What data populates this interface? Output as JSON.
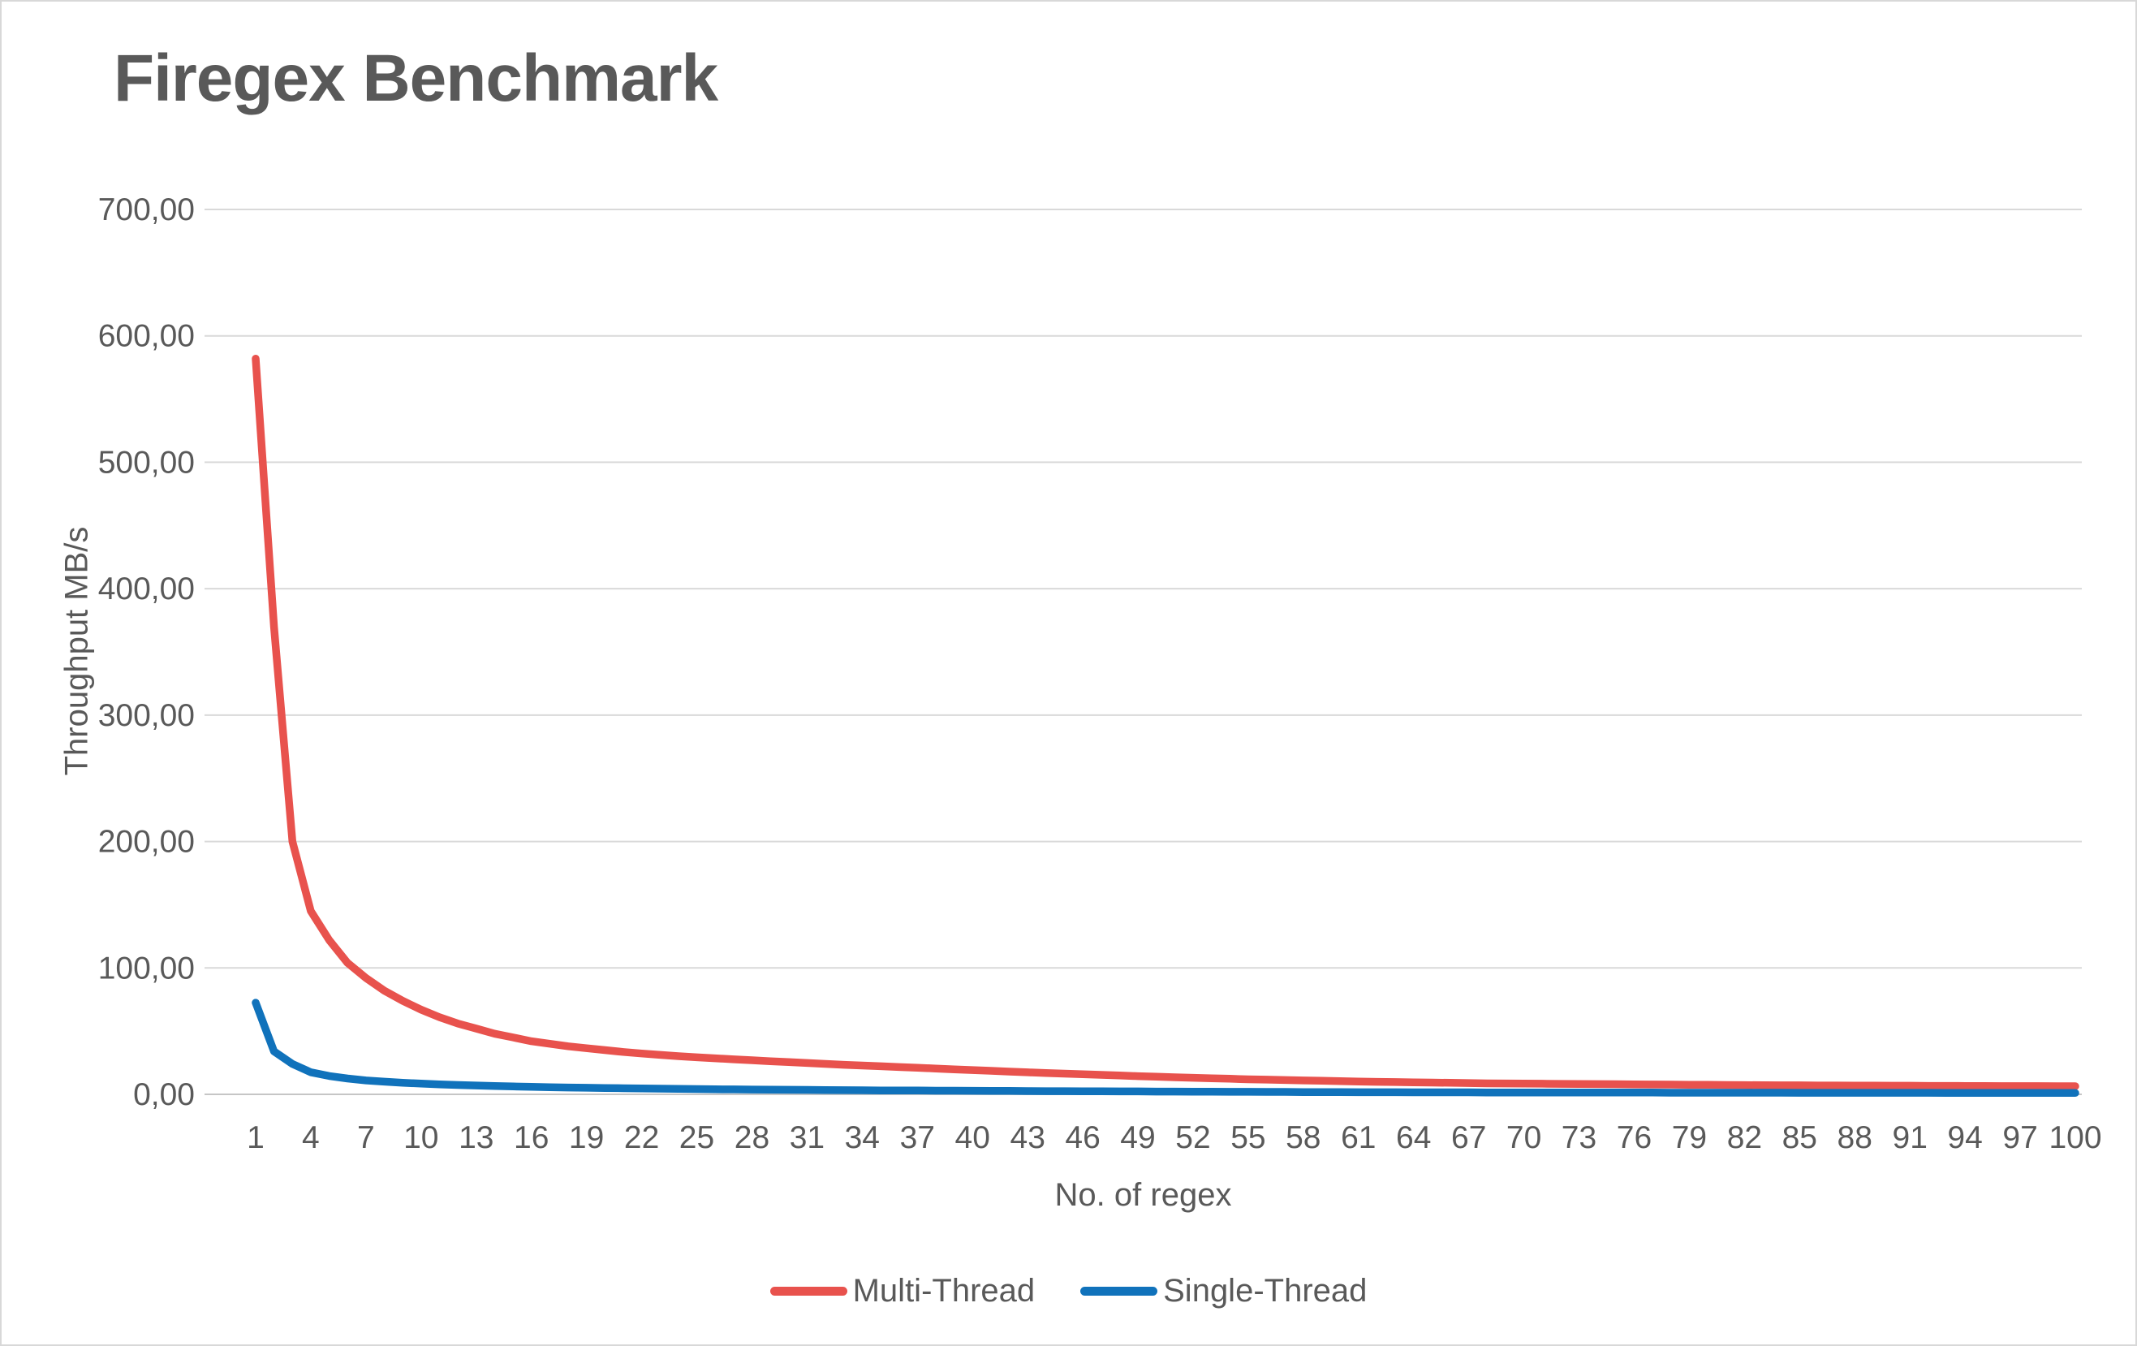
{
  "chart_data": {
    "type": "line",
    "title": "Firegex Benchmark",
    "xlabel": "No. of regex",
    "ylabel": "Throughput MB/s",
    "ylim": [
      0,
      700
    ],
    "x_range": [
      1,
      100
    ],
    "grid": "horizontal",
    "legend_position": "bottom-center",
    "decimal_separator": ",",
    "x_tick_values": [
      1,
      4,
      7,
      10,
      13,
      16,
      19,
      22,
      25,
      28,
      31,
      34,
      37,
      40,
      43,
      46,
      49,
      52,
      55,
      58,
      61,
      64,
      67,
      70,
      73,
      76,
      79,
      82,
      85,
      88,
      91,
      94,
      97,
      100
    ],
    "y_ticks": [
      {
        "value": 0,
        "label": "0,00"
      },
      {
        "value": 100,
        "label": "100,00"
      },
      {
        "value": 200,
        "label": "200,00"
      },
      {
        "value": 300,
        "label": "300,00"
      },
      {
        "value": 400,
        "label": "400,00"
      },
      {
        "value": 500,
        "label": "500,00"
      },
      {
        "value": 600,
        "label": "600,00"
      },
      {
        "value": 700,
        "label": "700,00"
      }
    ],
    "series": [
      {
        "name": "Multi-Thread",
        "color": "#e8524d",
        "values": [
          582,
          370,
          200,
          145,
          122,
          104,
          92,
          82,
          74,
          67,
          61,
          56,
          52,
          48,
          45,
          42,
          40,
          38,
          36.5,
          35,
          33.5,
          32.3,
          31.2,
          30.2,
          29.3,
          28.5,
          27.7,
          27,
          26.2,
          25.5,
          24.8,
          24.1,
          23.4,
          22.8,
          22.2,
          21.6,
          21,
          20.4,
          19.8,
          19.2,
          18.6,
          18,
          17.4,
          16.9,
          16.4,
          15.9,
          15.4,
          14.9,
          14.4,
          14,
          13.5,
          13.1,
          12.7,
          12.3,
          11.9,
          11.6,
          11.3,
          11,
          10.7,
          10.4,
          10.1,
          9.9,
          9.7,
          9.5,
          9.3,
          9.1,
          8.9,
          8.7,
          8.6,
          8.5,
          8.4,
          8.3,
          8.2,
          8.1,
          8,
          7.9,
          7.8,
          7.7,
          7.6,
          7.5,
          7.4,
          7.3,
          7.2,
          7.1,
          7.1,
          7,
          7,
          6.9,
          6.9,
          6.8,
          6.8,
          6.7,
          6.7,
          6.6,
          6.6,
          6.5,
          6.5,
          6.5,
          6.4,
          6.4
        ]
      },
      {
        "name": "Single-Thread",
        "color": "#1072bb",
        "values": [
          72.5,
          34,
          24,
          17.5,
          14.5,
          12.5,
          11,
          10,
          9.2,
          8.5,
          7.9,
          7.4,
          7,
          6.6,
          6.2,
          5.9,
          5.6,
          5.4,
          5.2,
          5,
          4.8,
          4.6,
          4.5,
          4.3,
          4.2,
          4,
          3.9,
          3.8,
          3.7,
          3.6,
          3.5,
          3.4,
          3.3,
          3.2,
          3.1,
          3.1,
          3,
          2.9,
          2.9,
          2.8,
          2.7,
          2.7,
          2.6,
          2.5,
          2.5,
          2.4,
          2.4,
          2.3,
          2.3,
          2.2,
          2.2,
          2.1,
          2.1,
          2,
          2,
          1.9,
          1.9,
          1.8,
          1.8,
          1.8,
          1.7,
          1.7,
          1.7,
          1.6,
          1.6,
          1.6,
          1.6,
          1.5,
          1.5,
          1.5,
          1.5,
          1.5,
          1.4,
          1.4,
          1.4,
          1.4,
          1.4,
          1.3,
          1.3,
          1.3,
          1.3,
          1.3,
          1.3,
          1.3,
          1.2,
          1.2,
          1.2,
          1.2,
          1.2,
          1.2,
          1.2,
          1.2,
          1.1,
          1.1,
          1.1,
          1.1,
          1.1,
          1.1,
          1.1,
          1.1
        ]
      }
    ]
  },
  "colors": {
    "text": "#595959",
    "gridline": "#d9d9d9",
    "axis_line": "#c6c6c6",
    "background": "#ffffff",
    "border": "#d8d8d8"
  }
}
